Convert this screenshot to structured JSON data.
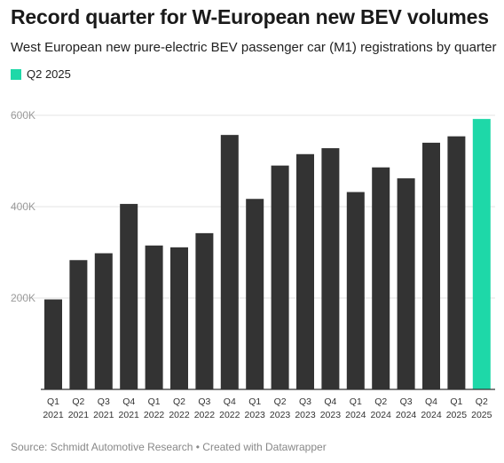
{
  "title": "Record quarter for W-European new BEV volumes",
  "subtitle": "West European new pure-electric BEV passenger car (M1) registrations by quarter",
  "source": "Source: Schmidt Automotive Research • Created with Datawrapper",
  "colors": {
    "bar": "#333333",
    "highlight": "#1ed8a8",
    "grid": "#e3e3e3",
    "axis": "#333333"
  },
  "chart_data": {
    "type": "bar",
    "title": "Record quarter for W-European new BEV volumes",
    "subtitle": "West European new pure-electric BEV passenger car (M1) registrations by quarter",
    "legend": {
      "entries": [
        "Q2 2025"
      ],
      "placement": "top-left"
    },
    "highlight_category": "Q2 2025",
    "categories": [
      [
        "Q1",
        "2021"
      ],
      [
        "Q2",
        "2021"
      ],
      [
        "Q3",
        "2021"
      ],
      [
        "Q4",
        "2021"
      ],
      [
        "Q1",
        "2022"
      ],
      [
        "Q2",
        "2022"
      ],
      [
        "Q3",
        "2022"
      ],
      [
        "Q4",
        "2022"
      ],
      [
        "Q1",
        "2023"
      ],
      [
        "Q2",
        "2023"
      ],
      [
        "Q3",
        "2023"
      ],
      [
        "Q4",
        "2023"
      ],
      [
        "Q1",
        "2024"
      ],
      [
        "Q2",
        "2024"
      ],
      [
        "Q3",
        "2024"
      ],
      [
        "Q4",
        "2024"
      ],
      [
        "Q1",
        "2025"
      ],
      [
        "Q2",
        "2025"
      ]
    ],
    "values": [
      197000,
      283000,
      298000,
      406000,
      315000,
      311000,
      342000,
      557000,
      417000,
      490000,
      515000,
      528000,
      432000,
      486000,
      462000,
      540000,
      554000,
      592000
    ],
    "ylim": [
      0,
      600000
    ],
    "yticks": [
      200000,
      400000,
      600000
    ],
    "ytick_labels": [
      "200K",
      "400K",
      "600K"
    ],
    "grid": true
  }
}
